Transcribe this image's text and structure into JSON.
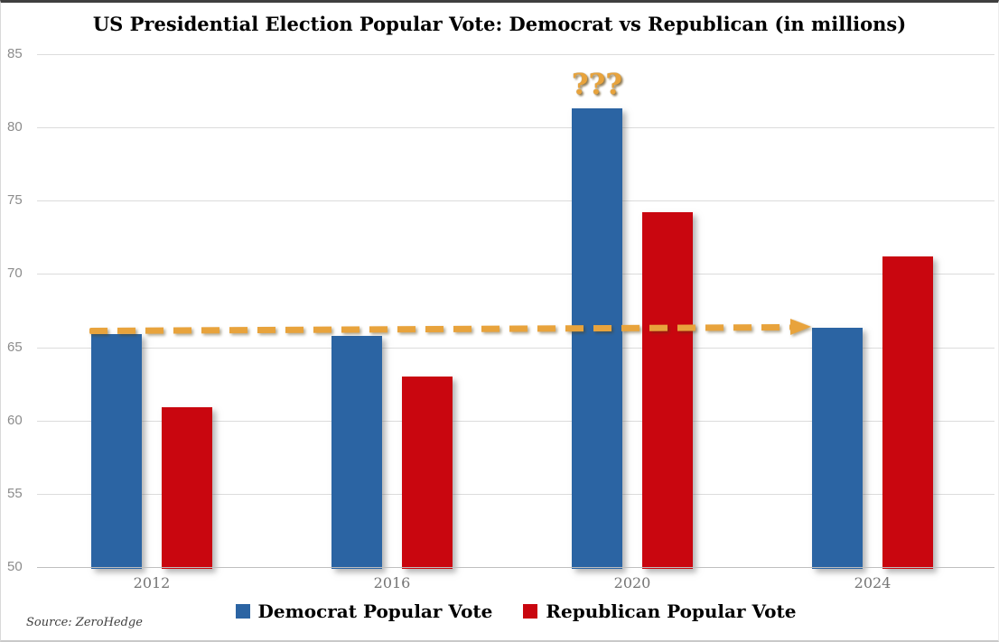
{
  "chart_data": {
    "type": "bar",
    "title": "US Presidential Election Popular Vote: Democrat vs Republican (in millions)",
    "categories": [
      "2012",
      "2016",
      "2020",
      "2024"
    ],
    "series": [
      {
        "name": "Democrat Popular Vote",
        "color": "#2B64A3",
        "values": [
          65.9,
          65.8,
          81.3,
          66.3
        ]
      },
      {
        "name": "Republican Popular Vote",
        "color": "#C9060F",
        "values": [
          60.9,
          63.0,
          74.2,
          71.2
        ]
      }
    ],
    "ylim": [
      50,
      85
    ],
    "yticks": [
      50,
      55,
      60,
      65,
      70,
      75,
      80,
      85
    ],
    "grid": true,
    "legend_position": "bottom",
    "annotations": [
      {
        "type": "dashed_arrow",
        "text": "",
        "color": "#E8A33C",
        "value_start": 66.1,
        "value_end": 66.35,
        "from_category": "2012",
        "to_category": "2024"
      },
      {
        "type": "text",
        "text": "???",
        "color": "#E8A33C",
        "category": "2020",
        "series": "Democrat Popular Vote",
        "position": "above-bar"
      }
    ],
    "source": "Source: ZeroHedge"
  }
}
